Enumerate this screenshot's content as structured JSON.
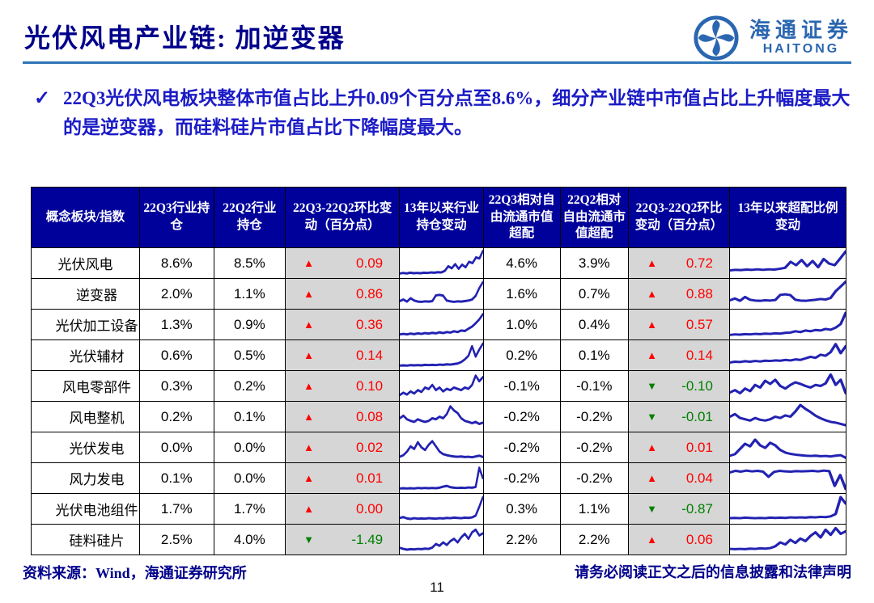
{
  "header": {
    "title": "光伏风电产业链: 加逆变器"
  },
  "logo": {
    "cn": "海通证券",
    "en": "HAITONG"
  },
  "bullet": {
    "check": "✓",
    "text": "22Q3光伏风电板块整体市值占比上升0.09个百分点至8.6%，细分产业链中市值占比上升幅度最大的是逆变器，而硅料硅片市值占比下降幅度最大。"
  },
  "table": {
    "headers": [
      "概念板块/指数",
      "22Q3行业持仓",
      "22Q2行业持仓",
      "22Q3-22Q2环比变动（百分点）",
      "13年以来行业持仓变动",
      "22Q3相对自由流通市值超配",
      "22Q2相对自由流通市值超配",
      "22Q3-22Q2环比变动（百分点）",
      "13年以来超配比例变动"
    ],
    "rows": [
      {
        "name": "光伏风电",
        "indent": false,
        "q3": "8.6%",
        "q2": "8.5%",
        "chg_dir": "up",
        "chg": "0.09",
        "trend_holding": [
          0.1,
          0.12,
          0.1,
          0.13,
          0.11,
          0.12,
          0.11,
          0.13,
          0.12,
          0.14,
          0.13,
          0.15,
          0.14,
          0.2,
          0.38,
          0.3,
          0.46,
          0.28,
          0.44,
          0.34,
          0.55,
          0.5,
          0.72,
          0.68,
          0.97
        ],
        "q3_over": "4.6%",
        "q2_over": "3.9%",
        "over_dir": "up",
        "over_chg": "0.72",
        "trend_over": [
          0.22,
          0.24,
          0.23,
          0.25,
          0.24,
          0.26,
          0.24,
          0.26,
          0.25,
          0.28,
          0.32,
          0.55,
          0.42,
          0.62,
          0.38,
          0.58,
          0.34,
          0.66,
          0.48,
          0.42,
          0.68,
          0.95
        ]
      },
      {
        "name": "逆变器",
        "indent": true,
        "q3": "2.0%",
        "q2": "1.1%",
        "chg_dir": "up",
        "chg": "0.86",
        "trend_holding": [
          0.22,
          0.28,
          0.2,
          0.33,
          0.24,
          0.2,
          0.19,
          0.21,
          0.2,
          0.22,
          0.44,
          0.46,
          0.43,
          0.24,
          0.21,
          0.19,
          0.21,
          0.2,
          0.22,
          0.24,
          0.28,
          0.42,
          0.72,
          0.95
        ],
        "q3_over": "1.6%",
        "q2_over": "0.7%",
        "over_dir": "up",
        "over_chg": "0.88",
        "trend_over": [
          0.25,
          0.32,
          0.23,
          0.38,
          0.27,
          0.24,
          0.23,
          0.25,
          0.24,
          0.26,
          0.46,
          0.48,
          0.45,
          0.27,
          0.24,
          0.23,
          0.25,
          0.27,
          0.3,
          0.28,
          0.34,
          0.6,
          0.78,
          0.97
        ]
      },
      {
        "name": "光伏加工设备",
        "indent": true,
        "q3": "1.3%",
        "q2": "0.9%",
        "chg_dir": "up",
        "chg": "0.36",
        "trend_holding": [
          0.12,
          0.14,
          0.12,
          0.15,
          0.13,
          0.16,
          0.14,
          0.17,
          0.15,
          0.18,
          0.16,
          0.2,
          0.17,
          0.21,
          0.19,
          0.24,
          0.21,
          0.27,
          0.25,
          0.34,
          0.42,
          0.55,
          0.7,
          0.9
        ],
        "q3_over": "1.0%",
        "q2_over": "0.4%",
        "over_dir": "up",
        "over_chg": "0.57",
        "trend_over": [
          0.1,
          0.12,
          0.11,
          0.13,
          0.12,
          0.14,
          0.13,
          0.15,
          0.14,
          0.16,
          0.15,
          0.18,
          0.19,
          0.24,
          0.21,
          0.27,
          0.24,
          0.29,
          0.27,
          0.33,
          0.3,
          0.38,
          0.52,
          0.95
        ]
      },
      {
        "name": "光伏辅材",
        "indent": true,
        "q3": "0.6%",
        "q2": "0.5%",
        "chg_dir": "up",
        "chg": "0.14",
        "trend_holding": [
          0.1,
          0.11,
          0.1,
          0.12,
          0.11,
          0.12,
          0.11,
          0.13,
          0.12,
          0.13,
          0.12,
          0.14,
          0.13,
          0.15,
          0.14,
          0.16,
          0.18,
          0.24,
          0.34,
          0.48,
          0.85,
          0.45,
          0.72,
          0.95
        ],
        "q3_over": "0.2%",
        "q2_over": "0.1%",
        "over_dir": "up",
        "over_chg": "0.14",
        "trend_over": [
          0.22,
          0.25,
          0.24,
          0.27,
          0.25,
          0.28,
          0.26,
          0.29,
          0.28,
          0.3,
          0.29,
          0.32,
          0.3,
          0.34,
          0.32,
          0.38,
          0.44,
          0.4,
          0.52,
          0.48,
          0.62,
          0.93,
          0.58,
          0.85
        ]
      },
      {
        "name": "风电零部件",
        "indent": true,
        "q3": "0.3%",
        "q2": "0.2%",
        "chg_dir": "up",
        "chg": "0.10",
        "trend_holding": [
          0.15,
          0.24,
          0.17,
          0.29,
          0.21,
          0.34,
          0.27,
          0.44,
          0.38,
          0.54,
          0.34,
          0.44,
          0.29,
          0.39,
          0.34,
          0.44,
          0.39,
          0.34,
          0.44,
          0.39,
          0.54,
          0.9,
          0.68,
          0.84
        ],
        "q3_over": "-0.1%",
        "q2_over": "-0.1%",
        "over_dir": "down",
        "over_chg": "-0.10",
        "trend_over": [
          0.25,
          0.34,
          0.22,
          0.4,
          0.3,
          0.54,
          0.44,
          0.7,
          0.58,
          0.74,
          0.5,
          0.4,
          0.54,
          0.64,
          0.58,
          0.5,
          0.44,
          0.54,
          0.5,
          0.6,
          0.94,
          0.54,
          0.74,
          0.22
        ]
      },
      {
        "name": "风电整机",
        "indent": true,
        "q3": "0.2%",
        "q2": "0.1%",
        "chg_dir": "up",
        "chg": "0.08",
        "trend_holding": [
          0.44,
          0.54,
          0.4,
          0.34,
          0.3,
          0.4,
          0.34,
          0.3,
          0.34,
          0.44,
          0.4,
          0.5,
          0.44,
          0.6,
          0.9,
          0.74,
          0.64,
          0.44,
          0.34,
          0.3,
          0.25,
          0.3,
          0.22,
          0.27
        ],
        "q3_over": "-0.2%",
        "q2_over": "-0.2%",
        "over_dir": "down",
        "over_chg": "-0.01",
        "trend_over": [
          0.5,
          0.6,
          0.45,
          0.4,
          0.35,
          0.45,
          0.38,
          0.35,
          0.4,
          0.5,
          0.45,
          0.55,
          0.5,
          0.7,
          0.95,
          0.8,
          0.68,
          0.54,
          0.44,
          0.36,
          0.3,
          0.27,
          0.22,
          0.17
        ]
      },
      {
        "name": "光伏发电",
        "indent": true,
        "q3": "0.0%",
        "q2": "0.0%",
        "chg_dir": "up",
        "chg": "0.02",
        "trend_holding": [
          0.14,
          0.2,
          0.34,
          0.54,
          0.44,
          0.7,
          0.5,
          0.4,
          0.6,
          0.74,
          0.54,
          0.34,
          0.24,
          0.2,
          0.17,
          0.15,
          0.14,
          0.15,
          0.13,
          0.14,
          0.12,
          0.15,
          0.18,
          0.13
        ],
        "q3_over": "-0.2%",
        "q2_over": "-0.2%",
        "over_dir": "up",
        "over_chg": "0.01",
        "trend_over": [
          0.18,
          0.24,
          0.44,
          0.64,
          0.54,
          0.8,
          0.58,
          0.48,
          0.68,
          0.58,
          0.4,
          0.3,
          0.25,
          0.22,
          0.2,
          0.18,
          0.17,
          0.18,
          0.16,
          0.17,
          0.15,
          0.18,
          0.2,
          0.1
        ]
      },
      {
        "name": "风力发电",
        "indent": true,
        "q3": "0.1%",
        "q2": "0.0%",
        "chg_dir": "up",
        "chg": "0.01",
        "trend_holding": [
          0.1,
          0.11,
          0.1,
          0.11,
          0.1,
          0.12,
          0.11,
          0.12,
          0.11,
          0.12,
          0.11,
          0.13,
          0.17,
          0.2,
          0.15,
          0.13,
          0.12,
          0.13,
          0.12,
          0.14,
          0.13,
          0.16,
          0.9,
          0.5
        ],
        "q3_over": "-0.2%",
        "q2_over": "-0.2%",
        "over_dir": "up",
        "over_chg": "0.04",
        "trend_over": [
          0.72,
          0.78,
          0.75,
          0.79,
          0.76,
          0.78,
          0.75,
          0.55,
          0.74,
          0.78,
          0.76,
          0.75,
          0.77,
          0.76,
          0.77,
          0.78,
          0.76,
          0.79,
          0.77,
          0.2,
          0.62,
          0.08
        ]
      },
      {
        "name": "光伏电池组件",
        "indent": true,
        "q3": "1.7%",
        "q2": "1.7%",
        "chg_dir": "up",
        "chg": "0.00",
        "trend_holding": [
          0.15,
          0.18,
          0.13,
          0.11,
          0.14,
          0.12,
          0.13,
          0.12,
          0.14,
          0.13,
          0.12,
          0.14,
          0.13,
          0.15,
          0.14,
          0.16,
          0.15,
          0.14,
          0.16,
          0.15,
          0.17,
          0.24,
          0.58,
          0.95
        ],
        "q3_over": "0.3%",
        "q2_over": "1.1%",
        "over_dir": "down",
        "over_chg": "-0.87",
        "trend_over": [
          0.14,
          0.15,
          0.14,
          0.16,
          0.15,
          0.14,
          0.15,
          0.14,
          0.16,
          0.15,
          0.16,
          0.15,
          0.17,
          0.16,
          0.17,
          0.16,
          0.18,
          0.17,
          0.19,
          0.18,
          0.21,
          0.3,
          0.95,
          0.7
        ]
      },
      {
        "name": "硅料硅片",
        "indent": true,
        "q3": "2.5%",
        "q2": "4.0%",
        "chg_dir": "down",
        "chg": "-1.49",
        "trend_holding": [
          0.18,
          0.14,
          0.11,
          0.13,
          0.12,
          0.14,
          0.13,
          0.15,
          0.14,
          0.19,
          0.33,
          0.26,
          0.39,
          0.29,
          0.44,
          0.53,
          0.39,
          0.58,
          0.72,
          0.53,
          0.78,
          0.88,
          0.66,
          0.74
        ],
        "q3_over": "2.2%",
        "q2_over": "2.2%",
        "over_dir": "up",
        "over_chg": "0.06",
        "trend_over": [
          0.14,
          0.13,
          0.14,
          0.13,
          0.15,
          0.14,
          0.16,
          0.15,
          0.17,
          0.24,
          0.39,
          0.31,
          0.49,
          0.37,
          0.54,
          0.44,
          0.64,
          0.78,
          0.58,
          0.88,
          0.68,
          0.94,
          0.72,
          0.82
        ]
      }
    ]
  },
  "footer": {
    "source": "资料来源：Wind，海通证券研究所",
    "disclaimer": "请务必阅读正文之后的信息披露和法律声明",
    "page": "11"
  },
  "icons": {
    "up_triangle": "▲",
    "down_triangle": "▼"
  },
  "colors": {
    "title": "#00008B",
    "bullet_text": "#1B1BC6",
    "accent_rule": "#2E74B5",
    "header_bg": "#00009B",
    "header_text": "#FFFFFF",
    "change_bg": "#D6D6D6",
    "up": "#FF0000",
    "down": "#008000",
    "spark": "#2222B2",
    "logo": "#2B67B0"
  }
}
